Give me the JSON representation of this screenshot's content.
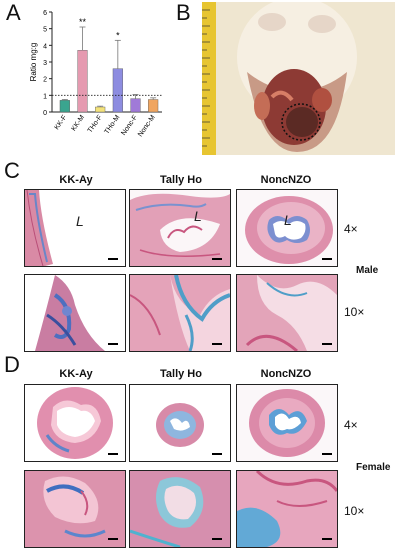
{
  "panels": {
    "A": "A",
    "B": "B",
    "C": "C",
    "D": "D"
  },
  "chart_data": {
    "type": "bar",
    "categories": [
      "KK-F",
      "KK-M",
      "THo-F",
      "THo-M",
      "Nonc-F",
      "Nonc-M"
    ],
    "values": [
      0.7,
      3.7,
      0.3,
      2.6,
      0.8,
      0.75
    ],
    "errors": [
      0.05,
      1.4,
      0.05,
      1.7,
      0.25,
      0.1
    ],
    "significance": [
      "",
      "**",
      "",
      "*",
      "",
      ""
    ],
    "ylabel": "Ratio mg:g",
    "ylim": [
      0,
      6
    ],
    "yticks": [
      "0",
      "1",
      "2",
      "3",
      "4",
      "5",
      "6"
    ],
    "reference_line": 1,
    "colors": [
      "#3aa58f",
      "#e59ab0",
      "#f3e27a",
      "#8d8ce0",
      "#a07ad8",
      "#f0a55f"
    ]
  },
  "section_c": {
    "strains": [
      "KK-Ay",
      "Tally Ho",
      "NoncNZO"
    ],
    "magnifications": [
      "4×",
      "10×"
    ],
    "sex": "Male",
    "lumen_label": "L"
  },
  "section_d": {
    "strains": [
      "KK-Ay",
      "Tally Ho",
      "NoncNZO"
    ],
    "magnifications": [
      "4×",
      "10×"
    ],
    "sex": "Female"
  }
}
